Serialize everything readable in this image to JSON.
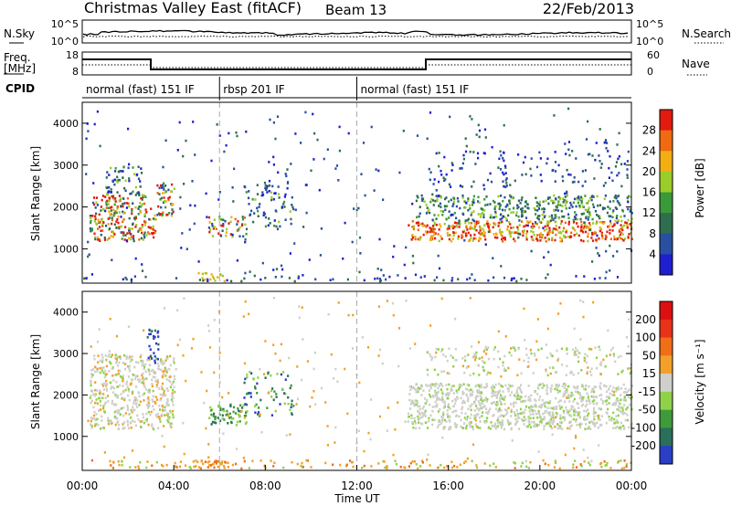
{
  "header": {
    "title": "Christmas Valley East (fitACF)",
    "beam": "Beam 13",
    "date": "22/Feb/2013"
  },
  "noise_panel": {
    "left_label": "N.Sky",
    "right_label": "N.Search",
    "left_ticks": [
      "10^5",
      "10^0"
    ],
    "right_ticks": [
      "10^5",
      "10^0"
    ]
  },
  "freq_panel": {
    "left_label_1": "Freq.",
    "left_label_2": "[MHz]",
    "right_label": "Nave",
    "left_ticks": [
      "18",
      "8"
    ],
    "right_ticks": [
      "60",
      "0"
    ]
  },
  "cpid": {
    "label": "CPID",
    "segments": [
      {
        "name": "normal (fast) 151 IF",
        "start_hr": 0.0,
        "end_hr": 6.0
      },
      {
        "name": "rbsp 201 IF",
        "start_hr": 6.0,
        "end_hr": 12.0
      },
      {
        "name": "normal (fast) 151 IF",
        "start_hr": 12.0,
        "end_hr": 24.0
      }
    ]
  },
  "chart_data": [
    {
      "type": "heatmap",
      "name": "power",
      "ylabel": "Slant Range [km]",
      "yticks": [
        1000,
        2000,
        3000,
        4000
      ],
      "ylim": [
        180,
        4500
      ],
      "colorbar_label": "Power [dB]",
      "colorbar_ticks": [
        "4",
        "8",
        "12",
        "16",
        "20",
        "24",
        "28"
      ],
      "colorbar_colors": [
        "#1f1fd0",
        "#2a4fa0",
        "#2e6e4e",
        "#3a9a3a",
        "#9bcc28",
        "#f2ae12",
        "#ef6a10",
        "#e21a10"
      ]
    },
    {
      "type": "heatmap",
      "name": "velocity",
      "ylabel": "Slant Range [km]",
      "xlabel": "Time UT",
      "yticks": [
        1000,
        2000,
        3000,
        4000
      ],
      "ylim": [
        180,
        4500
      ],
      "xticks": [
        "00:00",
        "04:00",
        "08:00",
        "12:00",
        "16:00",
        "20:00",
        "00:00"
      ],
      "xlim_hours": [
        0,
        24
      ],
      "colorbar_label": "Velocity [m s⁻¹]",
      "colorbar_ticks": [
        "200",
        "100",
        "50",
        "15",
        "-15",
        "-50",
        "-100",
        "-200"
      ],
      "colorbar_colors": [
        "#2a3ec6",
        "#2a6f5c",
        "#3f9b3a",
        "#8fd24a",
        "#cfcfcb",
        "#f3a02a",
        "#ef6e16",
        "#e8321a",
        "#dd1010"
      ]
    }
  ]
}
